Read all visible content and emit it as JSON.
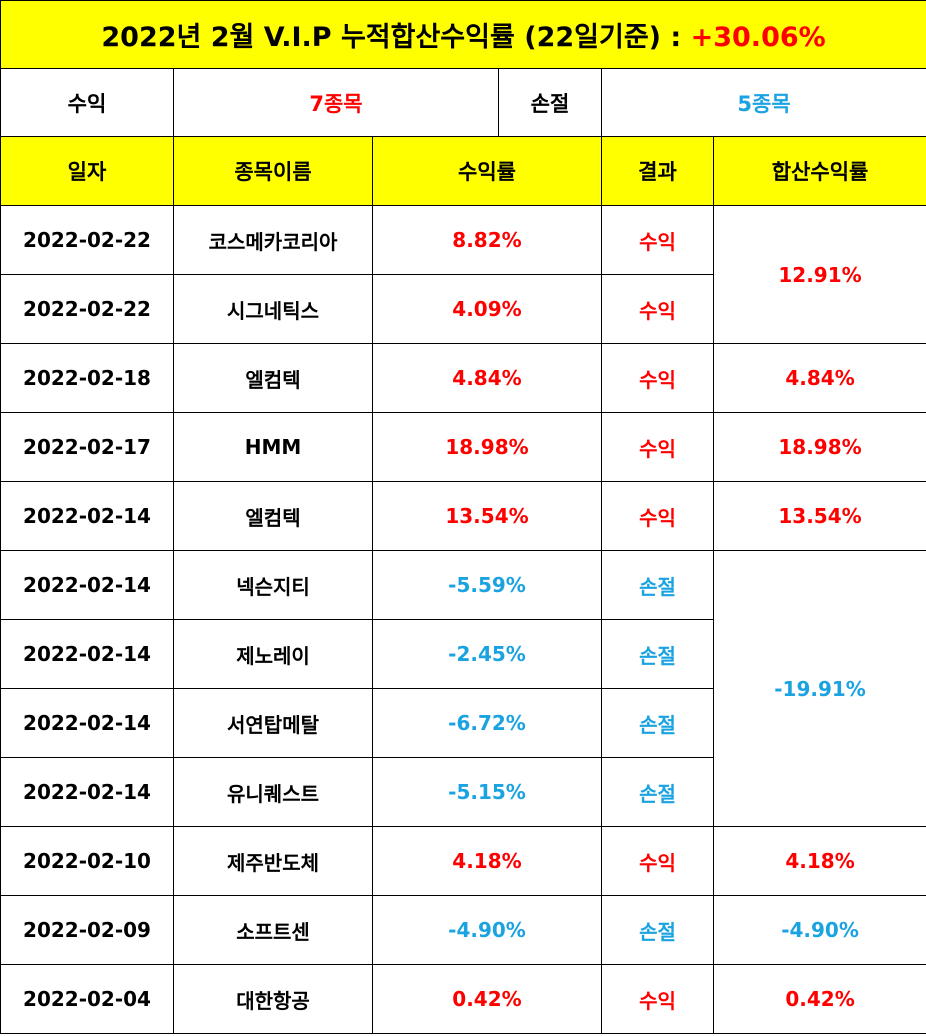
{
  "title": {
    "text": "2022년 2월 V.I.P 누적합산수익률 (22일기준) : ",
    "total_return": "+30.06%"
  },
  "summary": {
    "profit_label": "수익",
    "profit_count": "7종목",
    "loss_label": "손절",
    "loss_count": "5종목"
  },
  "headers": {
    "date": "일자",
    "name": "종목이름",
    "return": "수익률",
    "result": "결과",
    "combined": "합산수익률"
  },
  "rows": [
    {
      "date": "2022-02-22",
      "name": "코스메카코리아",
      "return": "8.82%",
      "result": "수익",
      "combined": "12.91%"
    },
    {
      "date": "2022-02-22",
      "name": "시그네틱스",
      "return": "4.09%",
      "result": "수익"
    },
    {
      "date": "2022-02-18",
      "name": "엘컴텍",
      "return": "4.84%",
      "result": "수익",
      "combined": "4.84%"
    },
    {
      "date": "2022-02-17",
      "name": "HMM",
      "return": "18.98%",
      "result": "수익",
      "combined": "18.98%"
    },
    {
      "date": "2022-02-14",
      "name": "엘컴텍",
      "return": "13.54%",
      "result": "수익",
      "combined": "13.54%"
    },
    {
      "date": "2022-02-14",
      "name": "넥슨지티",
      "return": "-5.59%",
      "result": "손절",
      "combined": "-19.91%"
    },
    {
      "date": "2022-02-14",
      "name": "제노레이",
      "return": "-2.45%",
      "result": "손절"
    },
    {
      "date": "2022-02-14",
      "name": "서연탑메탈",
      "return": "-6.72%",
      "result": "손절"
    },
    {
      "date": "2022-02-14",
      "name": "유니퀘스트",
      "return": "-5.15%",
      "result": "손절"
    },
    {
      "date": "2022-02-10",
      "name": "제주반도체",
      "return": "4.18%",
      "result": "수익",
      "combined": "4.18%"
    },
    {
      "date": "2022-02-09",
      "name": "소프트센",
      "return": "-4.90%",
      "result": "손절",
      "combined": "-4.90%"
    },
    {
      "date": "2022-02-04",
      "name": "대한항공",
      "return": "0.42%",
      "result": "수익",
      "combined": "0.42%"
    }
  ]
}
